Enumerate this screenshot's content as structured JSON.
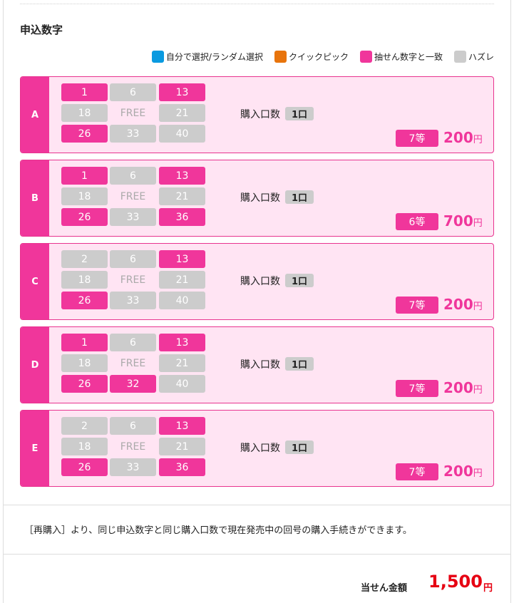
{
  "section_title": "申込数字",
  "legend": [
    {
      "label": "自分で選択/ランダム選択",
      "color": "#0a9ae0"
    },
    {
      "label": "クイックピック",
      "color": "#e8740c"
    },
    {
      "label": "抽せん数字と一致",
      "color": "#f0369b"
    },
    {
      "label": "ハズレ",
      "color": "#cccccc"
    }
  ],
  "lines": [
    {
      "letter": "A",
      "numbers": [
        {
          "v": "1",
          "s": "hit"
        },
        {
          "v": "6",
          "s": "miss"
        },
        {
          "v": "13",
          "s": "hit"
        },
        {
          "v": "18",
          "s": "miss"
        },
        {
          "v": "FREE",
          "s": "free"
        },
        {
          "v": "21",
          "s": "miss"
        },
        {
          "v": "26",
          "s": "hit"
        },
        {
          "v": "33",
          "s": "miss"
        },
        {
          "v": "40",
          "s": "miss"
        }
      ],
      "qty_label": "購入口数",
      "qty": "1口",
      "rank": "7等",
      "prize": "200",
      "unit": "円"
    },
    {
      "letter": "B",
      "numbers": [
        {
          "v": "1",
          "s": "hit"
        },
        {
          "v": "6",
          "s": "miss"
        },
        {
          "v": "13",
          "s": "hit"
        },
        {
          "v": "18",
          "s": "miss"
        },
        {
          "v": "FREE",
          "s": "free"
        },
        {
          "v": "21",
          "s": "miss"
        },
        {
          "v": "26",
          "s": "hit"
        },
        {
          "v": "33",
          "s": "miss"
        },
        {
          "v": "36",
          "s": "hit"
        }
      ],
      "qty_label": "購入口数",
      "qty": "1口",
      "rank": "6等",
      "prize": "700",
      "unit": "円"
    },
    {
      "letter": "C",
      "numbers": [
        {
          "v": "2",
          "s": "miss"
        },
        {
          "v": "6",
          "s": "miss"
        },
        {
          "v": "13",
          "s": "hit"
        },
        {
          "v": "18",
          "s": "miss"
        },
        {
          "v": "FREE",
          "s": "free"
        },
        {
          "v": "21",
          "s": "miss"
        },
        {
          "v": "26",
          "s": "hit"
        },
        {
          "v": "33",
          "s": "miss"
        },
        {
          "v": "40",
          "s": "miss"
        }
      ],
      "qty_label": "購入口数",
      "qty": "1口",
      "rank": "7等",
      "prize": "200",
      "unit": "円"
    },
    {
      "letter": "D",
      "numbers": [
        {
          "v": "1",
          "s": "hit"
        },
        {
          "v": "6",
          "s": "miss"
        },
        {
          "v": "13",
          "s": "hit"
        },
        {
          "v": "18",
          "s": "miss"
        },
        {
          "v": "FREE",
          "s": "free"
        },
        {
          "v": "21",
          "s": "miss"
        },
        {
          "v": "26",
          "s": "hit"
        },
        {
          "v": "32",
          "s": "hit"
        },
        {
          "v": "40",
          "s": "miss"
        }
      ],
      "qty_label": "購入口数",
      "qty": "1口",
      "rank": "7等",
      "prize": "200",
      "unit": "円"
    },
    {
      "letter": "E",
      "numbers": [
        {
          "v": "2",
          "s": "miss"
        },
        {
          "v": "6",
          "s": "miss"
        },
        {
          "v": "13",
          "s": "hit"
        },
        {
          "v": "18",
          "s": "miss"
        },
        {
          "v": "FREE",
          "s": "free"
        },
        {
          "v": "21",
          "s": "miss"
        },
        {
          "v": "26",
          "s": "hit"
        },
        {
          "v": "33",
          "s": "miss"
        },
        {
          "v": "36",
          "s": "hit"
        }
      ],
      "qty_label": "購入口数",
      "qty": "1口",
      "rank": "7等",
      "prize": "200",
      "unit": "円"
    }
  ],
  "note": "［再購入］より、同じ申込数字と同じ購入口数で現在発売中の回号の購入手続きができます。",
  "total": {
    "label": "当せん金額",
    "amount": "1,500",
    "unit": "円"
  }
}
